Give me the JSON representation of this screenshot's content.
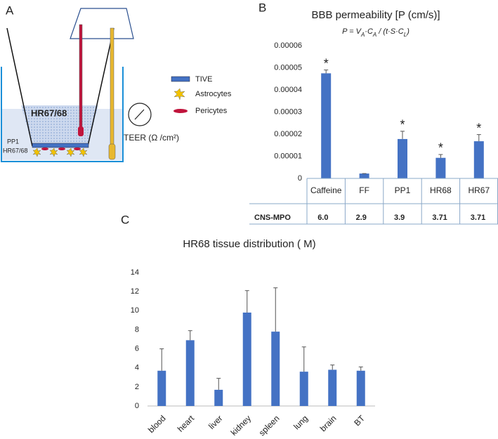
{
  "panels": [
    "A",
    "B",
    "C"
  ],
  "diagram": {
    "well_label": "HR67/68",
    "layer_label_top": "PP1",
    "layer_label_bottom": "HR67/68",
    "legend": [
      "TIVE",
      "Astrocytes",
      "Pericytes"
    ],
    "meter_label": "TEER (Ω /cm²)"
  },
  "chart_data": [
    {
      "type": "bar",
      "title": "BBB permeability [P (cm/s)]",
      "subtitle_parts": [
        "P = V",
        "A",
        "·C",
        "A",
        " / (t·S·C",
        "L",
        ")"
      ],
      "categories": [
        "Caffeine",
        "FF",
        "PP1",
        "HR68",
        "HR67"
      ],
      "values": [
        4.75e-05,
        2.2e-06,
        1.78e-05,
        9.3e-06,
        1.68e-05
      ],
      "errors": [
        1.5e-06,
        0,
        3.5e-06,
        1.5e-06,
        3e-06
      ],
      "significance": [
        "*",
        null,
        "*",
        "*",
        "*"
      ],
      "table_row_label": "CNS-MPO",
      "table_values": [
        "6.0",
        "2.9",
        "3.9",
        "3.71",
        "3.71"
      ],
      "color": "#4472c4",
      "ylim": [
        0,
        6e-05
      ],
      "yticks": [
        0,
        1e-05,
        2e-05,
        3e-05,
        4e-05,
        5e-05,
        6e-05
      ],
      "grid": false
    },
    {
      "type": "bar",
      "title": "HR68 tissue distribution (  M)",
      "categories": [
        "blood",
        "heart",
        "liver",
        "kidney",
        "spleen",
        "lung",
        "brain",
        "BT"
      ],
      "values": [
        3.7,
        6.9,
        1.7,
        9.8,
        7.8,
        3.6,
        3.8,
        3.7
      ],
      "errors": [
        2.3,
        1.0,
        1.2,
        2.3,
        4.6,
        2.6,
        0.5,
        0.4
      ],
      "color": "#4472c4",
      "ylim": [
        0,
        14
      ],
      "yticks": [
        0,
        2,
        4,
        6,
        8,
        10,
        12,
        14
      ],
      "grid": false
    }
  ]
}
